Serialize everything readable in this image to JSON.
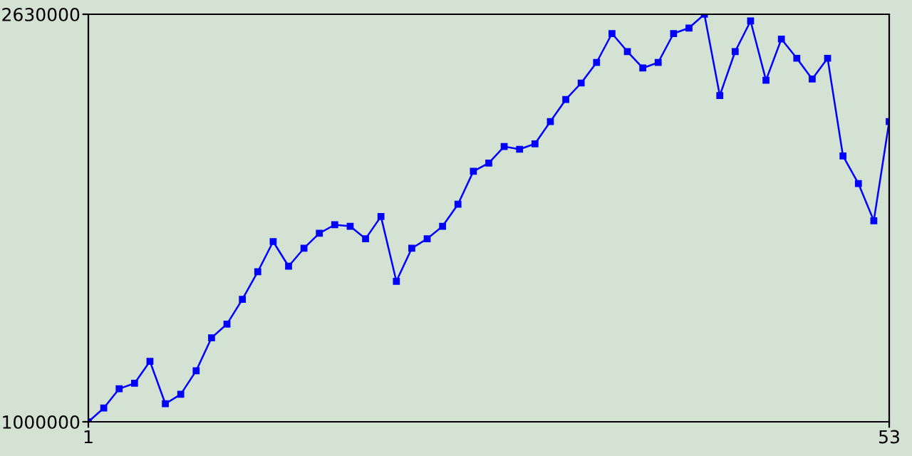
{
  "chart_data": {
    "type": "line",
    "x": [
      1,
      2,
      3,
      4,
      5,
      6,
      7,
      8,
      9,
      10,
      11,
      12,
      13,
      14,
      15,
      16,
      17,
      18,
      19,
      20,
      21,
      22,
      23,
      24,
      25,
      26,
      27,
      28,
      29,
      30,
      31,
      32,
      33,
      34,
      35,
      36,
      37,
      38,
      39,
      40,
      41,
      42,
      43,
      44,
      45,
      46,
      47,
      48,
      49,
      50,
      51,
      52,
      53
    ],
    "series": [
      {
        "color": "#0000ff",
        "values": [
          1000000,
          1055000,
          1132000,
          1154000,
          1242000,
          1072000,
          1110000,
          1204000,
          1336000,
          1391000,
          1490000,
          1600000,
          1721000,
          1622000,
          1694000,
          1754000,
          1788000,
          1782000,
          1732000,
          1821000,
          1562000,
          1694000,
          1732000,
          1782000,
          1870000,
          2002000,
          2035000,
          2101000,
          2090000,
          2112000,
          2201000,
          2289000,
          2355000,
          2437000,
          2553000,
          2481000,
          2415000,
          2437000,
          2553000,
          2575000,
          2630000,
          2305000,
          2481000,
          2603000,
          2366000,
          2531000,
          2454000,
          2371000,
          2454000,
          2063000,
          1953000,
          1804000,
          2201000
        ]
      }
    ],
    "xlim": [
      1,
      53
    ],
    "xticks": [
      1,
      53
    ],
    "ylim": [
      1000000,
      2630000
    ],
    "yticks": [
      1000000,
      2630000
    ],
    "marker": "square",
    "line_style": "solid",
    "grid": false,
    "legend": false
  }
}
